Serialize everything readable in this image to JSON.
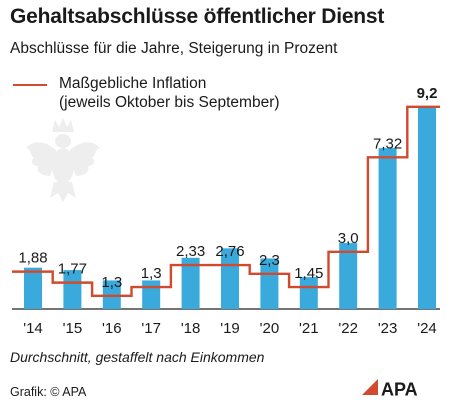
{
  "chart_data": {
    "type": "bar",
    "title": "Gehaltsabschlüsse öffentlicher Dienst",
    "subtitle": "Abschlüsse für die Jahre, Steigerung in Prozent",
    "categories": [
      "'14",
      "'15",
      "'16",
      "'17",
      "'18",
      "'19",
      "'20",
      "'21",
      "'22",
      "'23",
      "'24"
    ],
    "series": [
      {
        "values": [
          1.88,
          1.77,
          1.3,
          1.3,
          2.33,
          2.76,
          2.3,
          1.45,
          3.0,
          7.32,
          9.2
        ],
        "value_labels": [
          "1,88",
          "1,77",
          "1,3",
          "1,3",
          "2,33",
          "2,76",
          "2,3",
          "1,45",
          "3,0",
          "7,32",
          "9,2"
        ],
        "color": "#3aa9dc"
      },
      {
        "name": "Maßgebliche Inflation",
        "name_note": "(jeweils Oktober bis September)",
        "values": [
          1.7,
          1.2,
          0.6,
          1.0,
          2.0,
          2.0,
          1.6,
          1.0,
          2.6,
          6.9,
          9.2
        ],
        "style": "step",
        "color": "#d04a2e"
      }
    ],
    "ylim": [
      0,
      9.6
    ],
    "grid": false,
    "legend": "top-left",
    "xlabel": "",
    "ylabel": ""
  },
  "footer": {
    "note": "Durchschnitt, gestaffelt nach Einkommen",
    "credit": "Grafik: © APA",
    "logo_text": "APA"
  },
  "colors": {
    "bar": "#3aa9dc",
    "inflation": "#d04a2e",
    "axis": "#222222",
    "emblem": "#eeeeee"
  },
  "icons": {
    "emblem": "austrian-eagle-icon"
  }
}
